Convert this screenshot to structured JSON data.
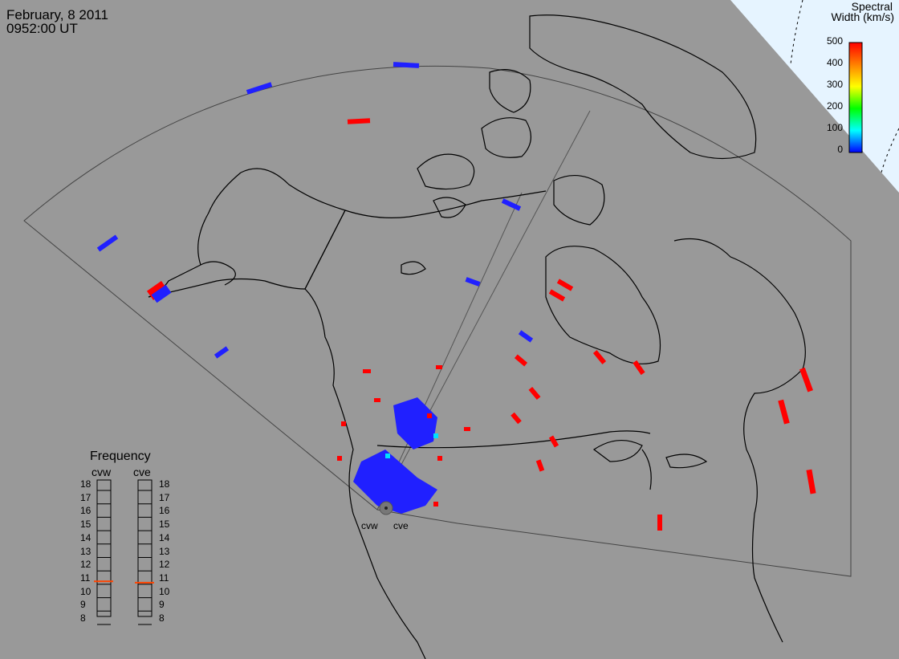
{
  "header": {
    "date": "February, 8 2011",
    "time": "0952:00 UT"
  },
  "colorbar": {
    "title_line1": "Spectral",
    "title_line2": "Width (km/s)",
    "ticks": [
      "500",
      "400",
      "300",
      "200",
      "100",
      "0"
    ],
    "colors": [
      "#ff0000",
      "#ff8000",
      "#ffff00",
      "#00ff00",
      "#00ffff",
      "#0000ff"
    ]
  },
  "frequency": {
    "title": "Frequency",
    "radars": [
      {
        "name": "cvw",
        "value_mhz": 10.8
      },
      {
        "name": "cve",
        "value_mhz": 10.7
      }
    ],
    "scale": [
      "18",
      "17",
      "16",
      "15",
      "14",
      "13",
      "12",
      "11",
      "10",
      "9",
      "8"
    ],
    "marker_color": "#ff4400"
  },
  "radars": {
    "west": "cvw",
    "east": "cve"
  },
  "map": {
    "background": "#999999",
    "ocean_inset_color": "#e6f4ff",
    "coastline_color": "#000000",
    "fov_color": "#444444"
  }
}
